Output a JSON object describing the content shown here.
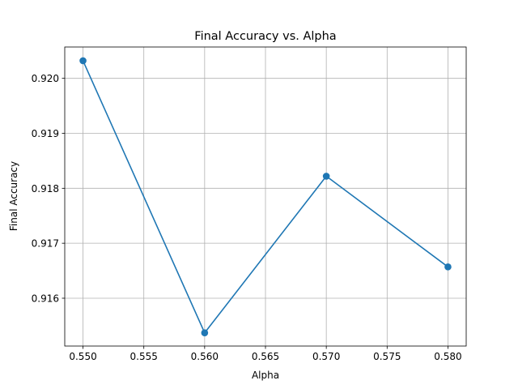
{
  "chart_data": {
    "type": "line",
    "title": "Final Accuracy vs. Alpha",
    "xlabel": "Alpha",
    "ylabel": "Final Accuracy",
    "x": [
      0.55,
      0.56,
      0.57,
      0.58
    ],
    "series": [
      {
        "name": "Final Accuracy",
        "values": [
          0.92032,
          0.91537,
          0.91822,
          0.91657
        ],
        "color": "#1f77b4",
        "marker": "circle"
      }
    ],
    "xlim": [
      0.5485,
      0.5815
    ],
    "ylim": [
      0.91513,
      0.92057
    ],
    "xticks": [
      0.55,
      0.555,
      0.56,
      0.565,
      0.57,
      0.575,
      0.58
    ],
    "xtick_labels": [
      "0.550",
      "0.555",
      "0.560",
      "0.565",
      "0.570",
      "0.575",
      "0.580"
    ],
    "yticks": [
      0.916,
      0.917,
      0.918,
      0.919,
      0.92
    ],
    "ytick_labels": [
      "0.916",
      "0.917",
      "0.918",
      "0.919",
      "0.920"
    ],
    "grid": true,
    "legend": "none"
  }
}
